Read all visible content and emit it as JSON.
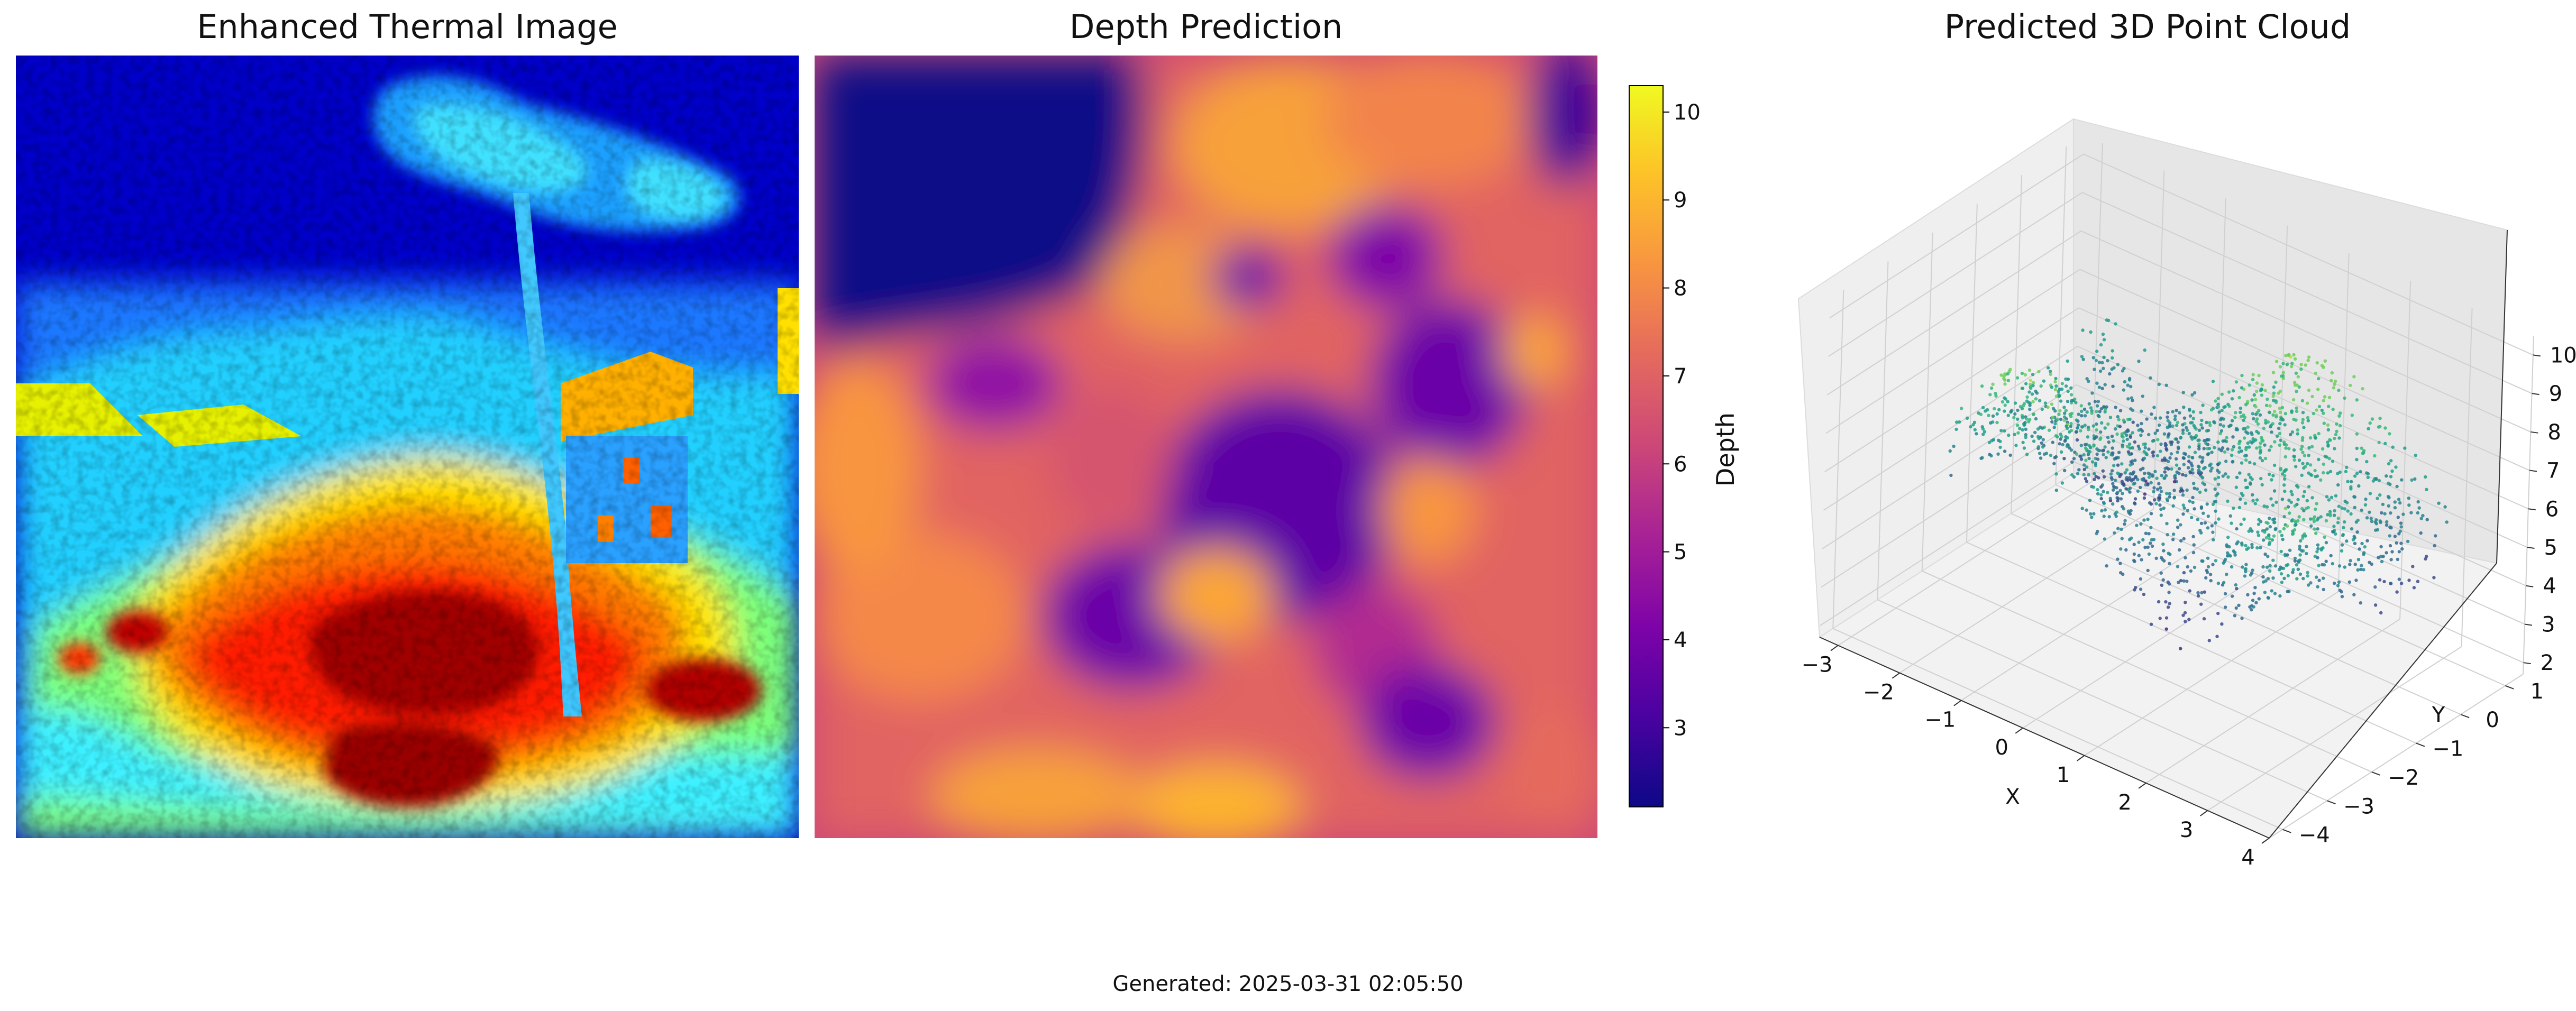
{
  "panels": {
    "thermal": {
      "title": "Enhanced Thermal Image"
    },
    "depth": {
      "title": "Depth Prediction",
      "colorbar_label": "Depth"
    },
    "cloud": {
      "title": "Predicted 3D Point Cloud"
    }
  },
  "footer": {
    "text": "Generated: 2025-03-31 02:05:50"
  },
  "chart_data": [
    {
      "type": "heatmap",
      "title": "Enhanced Thermal Image",
      "colormap": "jet"
    },
    {
      "type": "heatmap",
      "title": "Depth Prediction",
      "colormap": "plasma",
      "colorbar": {
        "label": "Depth",
        "range": [
          2.1,
          10.3
        ],
        "ticks": [
          3,
          4,
          5,
          6,
          7,
          8,
          9,
          10
        ]
      }
    },
    {
      "type": "scatter",
      "title": "Predicted 3D Point Cloud",
      "colormap": "viridis",
      "xlabel": "X",
      "ylabel": "Y",
      "xticks": [
        -3,
        -2,
        -1,
        0,
        1,
        2,
        3,
        4
      ],
      "yticks": [
        -4,
        -3,
        -2,
        -1,
        0,
        1
      ],
      "zticks": [
        2,
        3,
        4,
        5,
        6,
        7,
        8,
        9,
        10
      ],
      "xlim": [
        -3.3,
        4.0
      ],
      "ylim": [
        -4.3,
        1.4
      ],
      "zlim": [
        1.7,
        10.5
      ],
      "grid": true
    }
  ]
}
